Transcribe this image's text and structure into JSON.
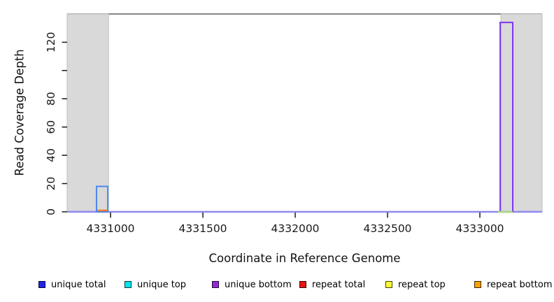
{
  "chart_data": {
    "type": "line",
    "title": "",
    "xlabel": "Coordinate in Reference Genome",
    "ylabel": "Read Coverage Depth",
    "xlim": [
      4330765,
      4333337
    ],
    "ylim": [
      0,
      140
    ],
    "grid": false,
    "legend_position": "bottom",
    "frame_top_line_color": "#5f5f5f",
    "baseline_color": "#9088ee",
    "axis_color": "#1a1a1a",
    "x_ticks": [
      {
        "value": 4331000,
        "label": "4331000"
      },
      {
        "value": 4331500,
        "label": "4331500"
      },
      {
        "value": 4332000,
        "label": "4332000"
      },
      {
        "value": 4332500,
        "label": "4332500"
      },
      {
        "value": 4333000,
        "label": "4333000"
      }
    ],
    "y_ticks": [
      {
        "value": 0,
        "label": "0"
      },
      {
        "value": 20,
        "label": "20"
      },
      {
        "value": 40,
        "label": "40"
      },
      {
        "value": 60,
        "label": "60"
      },
      {
        "value": 80,
        "label": "80"
      },
      {
        "value": 100,
        "label": ""
      },
      {
        "value": 120,
        "label": "120"
      }
    ],
    "shaded_regions": [
      {
        "name": "masked-region-left",
        "start": 4330765,
        "end": 4330989,
        "fill": "#d9d9d9",
        "border": "#bdbdbd"
      },
      {
        "name": "masked-region-right",
        "start": 4333114,
        "end": 4333337,
        "fill": "#d9d9d9",
        "border": "#bdbdbd"
      }
    ],
    "series": [
      {
        "name": "unique total",
        "legend_color": "#2222ee",
        "draw_color": "#4d87ec",
        "segments": [
          {
            "start": 4330924,
            "end": 4330985,
            "depth": 18
          }
        ]
      },
      {
        "name": "unique top",
        "legend_color": "#00e5ee",
        "draw_color": "#00e5ee",
        "segments": []
      },
      {
        "name": "unique bottom",
        "legend_color": "#8f2bd6",
        "draw_color": "#7c35ee",
        "segments": [
          {
            "start": 4333110,
            "end": 4333178,
            "depth": 134
          }
        ]
      },
      {
        "name": "repeat total",
        "legend_color": "#e81414",
        "draw_color": "#e81414",
        "segments": []
      },
      {
        "name": "repeat top",
        "legend_color": "#fdfd33",
        "draw_color": "#aad67f",
        "segments": [
          {
            "start": 4333098,
            "end": 4333178,
            "depth": 0
          }
        ]
      },
      {
        "name": "repeat bottom",
        "legend_color": "#ffa000",
        "draw_color": "#ff7f2b",
        "segments": [
          {
            "start": 4330928,
            "end": 4330982,
            "depth": 1
          }
        ]
      }
    ]
  }
}
